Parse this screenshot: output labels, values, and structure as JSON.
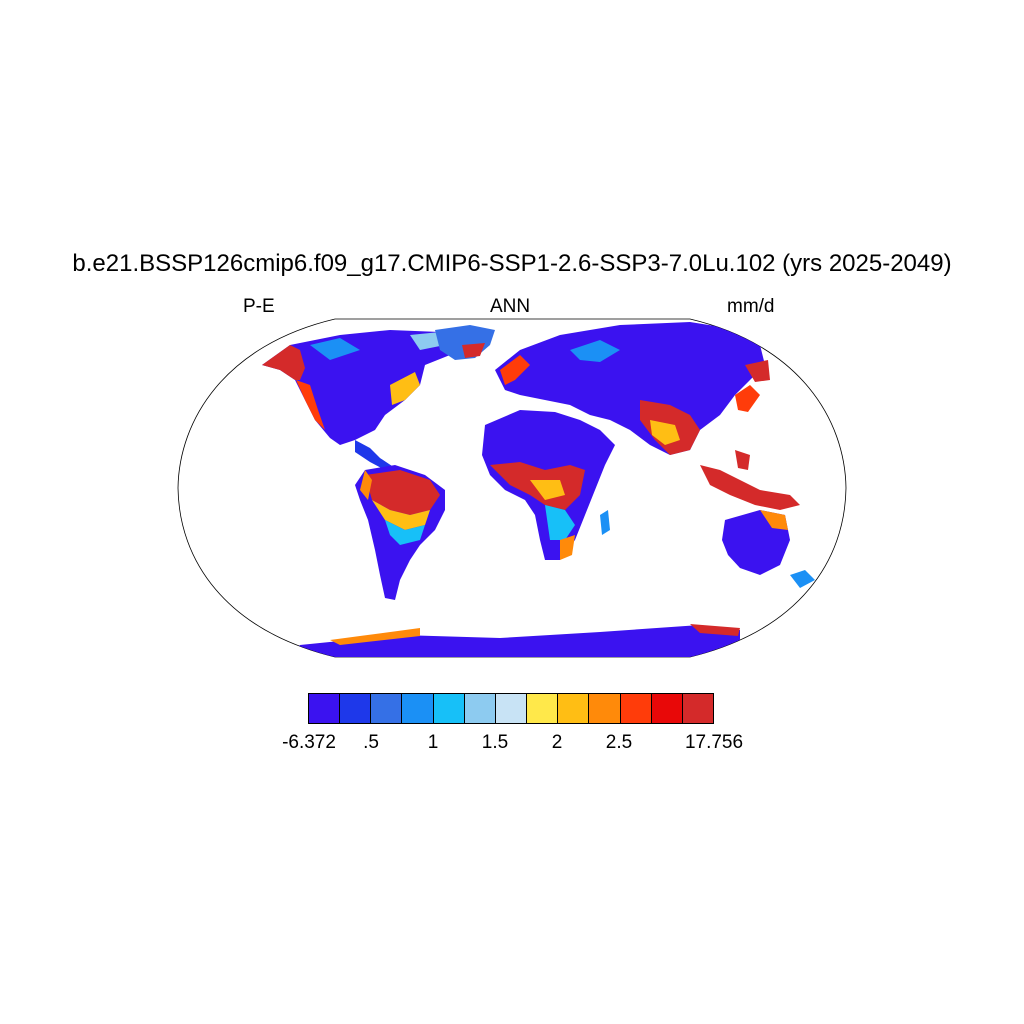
{
  "title": "b.e21.BSSP126cmip6.f09_g17.CMIP6-SSP1-2.6-SSP3-7.0Lu.102 (yrs 2025-2049)",
  "left_label": "P-E",
  "center_label": "ANN",
  "right_label": "mm/d",
  "colorbar": {
    "colors": [
      "#3b12f0",
      "#1e38ea",
      "#3570e6",
      "#1b90f5",
      "#17c0f8",
      "#8dcbf0",
      "#c8e3f5",
      "#ffe84a",
      "#ffbe14",
      "#ff8a0a",
      "#ff3c0a",
      "#e80808",
      "#d42a2a"
    ],
    "labels": [
      "-6.372",
      ".5",
      "1",
      "1.5",
      "2",
      "2.5",
      "17.756"
    ]
  },
  "map": {
    "projection": "Robinson",
    "field": "precipitation minus evaporation"
  }
}
